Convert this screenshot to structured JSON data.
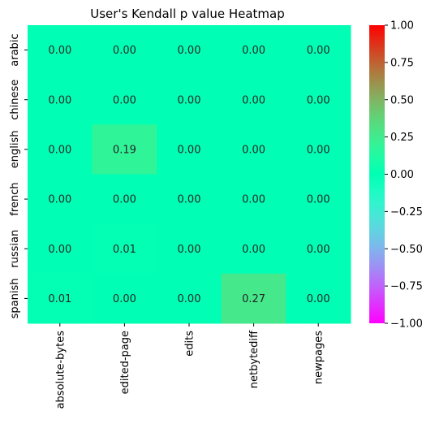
{
  "chart_data": {
    "type": "heatmap",
    "title": "User's Kendall p value Heatmap",
    "xlabel": "",
    "ylabel": "",
    "x_categories": [
      "absolute-bytes",
      "edited-page",
      "edits",
      "netbytediff",
      "newpages"
    ],
    "y_categories": [
      "arabic",
      "chinese",
      "english",
      "french",
      "russian",
      "spanish"
    ],
    "values": [
      [
        0.0,
        0.0,
        0.0,
        0.0,
        0.0
      ],
      [
        0.0,
        0.0,
        0.0,
        0.0,
        0.0
      ],
      [
        0.0,
        0.19,
        0.0,
        0.0,
        0.0
      ],
      [
        0.0,
        0.0,
        0.0,
        0.0,
        0.0
      ],
      [
        0.0,
        0.01,
        0.0,
        0.0,
        0.0
      ],
      [
        0.01,
        0.0,
        0.0,
        0.27,
        0.0
      ]
    ],
    "annotation_format": "0.00",
    "colormap": "rainbow",
    "vmin": -1.0,
    "vmax": 1.0,
    "colorbar_ticks": [
      1.0,
      0.75,
      0.5,
      0.25,
      0.0,
      -0.25,
      -0.5,
      -0.75,
      -1.0
    ],
    "colorbar_tick_labels": [
      "1.00",
      "0.75",
      "0.50",
      "0.25",
      "0.00",
      "−0.25",
      "−0.50",
      "−0.75",
      "−1.00"
    ],
    "legend_placement": "right",
    "grid": false
  }
}
